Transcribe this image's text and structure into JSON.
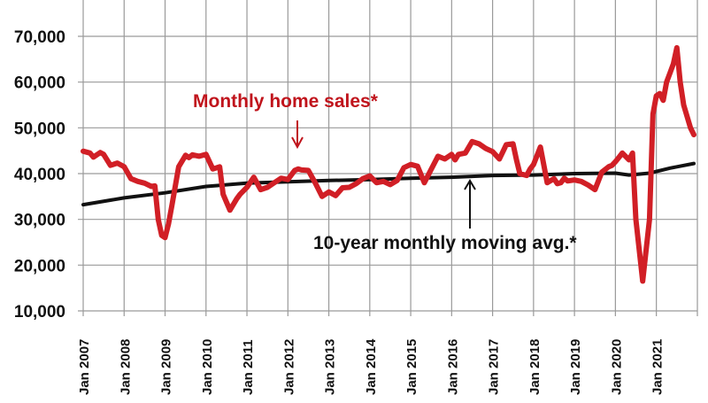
{
  "chart_data": {
    "type": "line",
    "title": "",
    "xlabel": "",
    "ylabel": "",
    "ylim": [
      10000,
      70000
    ],
    "yticks": [
      "10,000",
      "20,000",
      "30,000",
      "40,000",
      "50,000",
      "60,000",
      "70,000"
    ],
    "ytick_values": [
      10000,
      20000,
      30000,
      40000,
      50000,
      60000,
      70000
    ],
    "xticks": [
      "Jan 2007",
      "Jan 2008",
      "Jan 2009",
      "Jan 2010",
      "Jan 2011",
      "Jan 2012",
      "Jan 2013",
      "Jan 2014",
      "Jan 2015",
      "Jan 2016",
      "Jan 2017",
      "Jan 2018",
      "Jan 2019",
      "Jan 2020",
      "Jan 2021"
    ],
    "grid": true,
    "legend_position": "inline annotations",
    "x_unit": "months since Jan 2007",
    "series": [
      {
        "name": "Monthly home sales*",
        "color": "#d11f26",
        "x": [
          0,
          2,
          3,
          5,
          6,
          8,
          10,
          12,
          14,
          16,
          18,
          20,
          21,
          22,
          23,
          24,
          25,
          26,
          28,
          30,
          31,
          32,
          34,
          36,
          38,
          40,
          41,
          43,
          45,
          46,
          48,
          50,
          52,
          54,
          56,
          58,
          60,
          62,
          63,
          64,
          66,
          68,
          70,
          72,
          74,
          76,
          78,
          80,
          82,
          84,
          86,
          88,
          90,
          92,
          94,
          96,
          98,
          100,
          102,
          104,
          106,
          108,
          109,
          110,
          112,
          114,
          116,
          118,
          120,
          122,
          124,
          126,
          127,
          128,
          130,
          131,
          132,
          134,
          136,
          138,
          139,
          140,
          141,
          142,
          144,
          146,
          148,
          150,
          152,
          154,
          155,
          156,
          157,
          158,
          160,
          161,
          162,
          164,
          166,
          167,
          168,
          169,
          170,
          171,
          172,
          173,
          174,
          175,
          176,
          178,
          179
        ],
        "values": [
          44900,
          44500,
          43600,
          44600,
          44200,
          41800,
          42300,
          41500,
          38900,
          38300,
          37900,
          37200,
          37300,
          30000,
          26500,
          26000,
          29000,
          33000,
          41500,
          44000,
          43500,
          44100,
          43800,
          44200,
          41000,
          41500,
          35500,
          32000,
          34500,
          35500,
          37000,
          39200,
          36500,
          37000,
          38000,
          39000,
          38700,
          40700,
          41000,
          40800,
          40700,
          38000,
          35000,
          36000,
          35200,
          36900,
          37000,
          37800,
          38900,
          39500,
          38000,
          38300,
          37600,
          38500,
          41300,
          42000,
          41600,
          38000,
          40900,
          43800,
          43200,
          44200,
          43000,
          44200,
          44500,
          47000,
          46500,
          45500,
          44800,
          43200,
          46300,
          46500,
          43000,
          40000,
          39600,
          41000,
          42000,
          45800,
          38000,
          38900,
          37800,
          38000,
          39000,
          38400,
          38600,
          38300,
          37500,
          36500,
          40300,
          41500,
          41800,
          42600,
          43500,
          44500,
          43000,
          44500,
          30000,
          16500,
          30000,
          53000,
          57000,
          57500,
          56000,
          60000,
          62000,
          64000,
          67500,
          60000,
          55000,
          50000,
          48500
        ]
      },
      {
        "name": "10-year monthly moving avg.*",
        "color": "#111111",
        "x": [
          0,
          12,
          24,
          36,
          48,
          60,
          72,
          84,
          96,
          108,
          120,
          132,
          144,
          156,
          160,
          166,
          172,
          179
        ],
        "values": [
          33200,
          34700,
          35800,
          37200,
          37900,
          38200,
          38500,
          38700,
          39000,
          39200,
          39600,
          39700,
          40000,
          40100,
          39700,
          40100,
          41200,
          42200
        ]
      }
    ],
    "annotations": [
      {
        "text": "Monthly home sales*",
        "color": "#c0141c",
        "arrow_to": "Apr 2012"
      },
      {
        "text": "10-year monthly moving avg.*",
        "color": "#111111",
        "arrow_to": "Jun 2016"
      }
    ]
  }
}
